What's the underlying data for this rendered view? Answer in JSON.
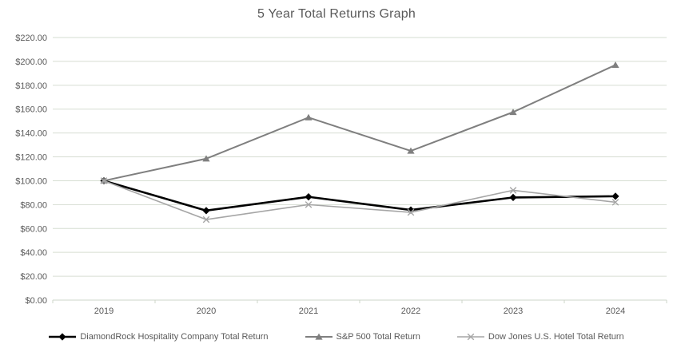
{
  "chart_data": {
    "type": "line",
    "title": "5 Year Total Returns Graph",
    "categories": [
      "2019",
      "2020",
      "2021",
      "2022",
      "2023",
      "2024"
    ],
    "series": [
      {
        "name": "DiamondRock Hospitality Company Total Return",
        "color": "#000000",
        "marker": "diamond",
        "stroke_width": 2.6,
        "values": [
          100,
          75,
          86.5,
          75.5,
          86,
          87
        ]
      },
      {
        "name": "S&P 500 Total Return",
        "color": "#7f7f7f",
        "marker": "triangle",
        "stroke_width": 2,
        "values": [
          100,
          118.5,
          153,
          125,
          157.5,
          197
        ]
      },
      {
        "name": "Dow Jones U.S. Hotel Total Return",
        "color": "#a6a6a6",
        "marker": "x",
        "stroke_width": 1.6,
        "values": [
          100,
          67.5,
          80,
          73.5,
          92,
          82
        ]
      }
    ],
    "y_axis": {
      "min": 0,
      "max": 220,
      "step": 20,
      "tick_labels": [
        "$0.00",
        "$20.00",
        "$40.00",
        "$60.00",
        "$80.00",
        "$100.00",
        "$120.00",
        "$140.00",
        "$160.00",
        "$180.00",
        "$200.00",
        "$220.00"
      ]
    },
    "x_axis": {
      "tick_labels": [
        "2019",
        "2020",
        "2021",
        "2022",
        "2023",
        "2024"
      ]
    },
    "grid": true,
    "legend_position": "bottom",
    "colors": {
      "text": "#595959",
      "gridline": "#d6ddd2",
      "axis_line": "#cdd4c9"
    }
  }
}
